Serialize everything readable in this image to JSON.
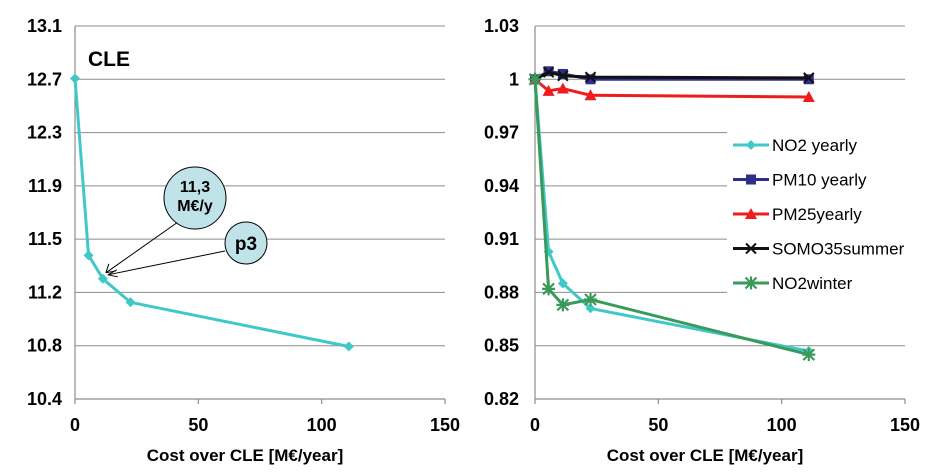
{
  "chart_data": [
    {
      "type": "line",
      "title": "CLE",
      "xlabel": "Cost over CLE [M€/year]",
      "ylabel": "",
      "xlim": [
        0,
        150
      ],
      "ylim": [
        10.4,
        13.1
      ],
      "xticks": [
        "0",
        "50",
        "100",
        "150"
      ],
      "yticks": [
        "10.4",
        "10.8",
        "11.2",
        "11.5",
        "11.9",
        "12.3",
        "12.7",
        "13.1"
      ],
      "grid": "horizontal",
      "series": [
        {
          "name": "",
          "color": "#40c8c8",
          "marker": "diamond",
          "x": [
            0,
            5.5,
            11.3,
            22.5,
            111
          ],
          "y": [
            12.72,
            11.44,
            11.27,
            11.1,
            10.78
          ]
        }
      ],
      "annotations": [
        {
          "text_lines": [
            "11,3",
            "M€/y"
          ],
          "points_to": [
            11.3,
            11.27
          ]
        },
        {
          "text_lines": [
            "p3"
          ],
          "points_to": [
            11.3,
            11.27
          ]
        }
      ]
    },
    {
      "type": "line",
      "title": "",
      "xlabel": "Cost over CLE [M€/year]",
      "ylabel": "",
      "xlim": [
        0,
        150
      ],
      "ylim": [
        0.82,
        1.03
      ],
      "xticks": [
        "0",
        "50",
        "100",
        "150"
      ],
      "yticks": [
        "0.82",
        "0.85",
        "0.88",
        "0.91",
        "0.94",
        "0.97",
        "1",
        "1.03"
      ],
      "grid": "horizontal",
      "legend": "right",
      "series": [
        {
          "name": "NO2 yearly",
          "color": "#40c8c8",
          "marker": "diamond",
          "x": [
            0,
            5.5,
            11.3,
            22.5,
            111
          ],
          "y": [
            1.0,
            0.903,
            0.885,
            0.871,
            0.847
          ]
        },
        {
          "name": "PM10 yearly",
          "color": "#2e2e8c",
          "marker": "square",
          "x": [
            0,
            5.5,
            11.3,
            22.5,
            111
          ],
          "y": [
            1.0,
            1.0045,
            1.003,
            1.0,
            1.0
          ]
        },
        {
          "name": "PM25yearly",
          "color": "#ee1c1c",
          "marker": "triangle",
          "x": [
            0,
            5.5,
            11.3,
            22.5,
            111
          ],
          "y": [
            1.0,
            0.9935,
            0.9948,
            0.991,
            0.99
          ]
        },
        {
          "name": "SOMO35summer",
          "color": "#111111",
          "marker": "x",
          "x": [
            0,
            5.5,
            11.3,
            22.5,
            111
          ],
          "y": [
            1.0,
            1.004,
            1.002,
            1.0012,
            1.0008
          ]
        },
        {
          "name": "NO2winter",
          "color": "#3a9a5a",
          "marker": "star",
          "x": [
            0,
            5.5,
            11.3,
            22.5,
            111
          ],
          "y": [
            1.0,
            0.882,
            0.873,
            0.876,
            0.845
          ]
        }
      ]
    }
  ]
}
